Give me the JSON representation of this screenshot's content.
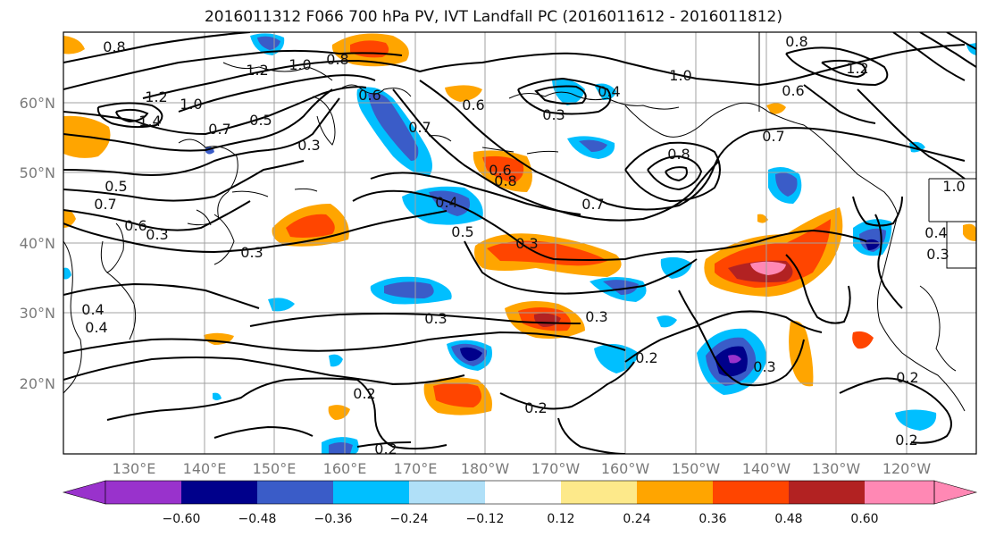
{
  "title": "2016011312 F066 700 hPa PV, IVT Landfall PC (2016011612 - 2016011812)",
  "latitude_labels": [
    "60°N",
    "50°N",
    "40°N",
    "30°N",
    "20°N"
  ],
  "longitude_labels": [
    "130°E",
    "140°E",
    "150°E",
    "160°E",
    "170°E",
    "180°W",
    "170°W",
    "160°W",
    "150°W",
    "140°W",
    "130°W",
    "120°W"
  ],
  "colorbar": {
    "tick_labels": [
      "−0.60",
      "−0.48",
      "−0.36",
      "−0.24",
      "−0.12",
      "0.12",
      "0.24",
      "0.36",
      "0.48",
      "0.60"
    ],
    "colors": [
      "#9932cc",
      "#00008b",
      "#3a5cc8",
      "#00bfff",
      "#b0e0f8",
      "#ffffff",
      "#fde98a",
      "#ffa500",
      "#ff4500",
      "#b22222",
      "#ff88b4"
    ]
  },
  "contour_labels": [
    "0.8",
    "1.2",
    "1.0",
    "0.8",
    "1.2",
    "1.4",
    "1.0",
    "0.7",
    "0.5",
    "0.3",
    "0.5",
    "0.7",
    "0.6",
    "0.3",
    "0.6",
    "0.3",
    "0.7",
    "0.6",
    "0.4",
    "0.5",
    "0.4",
    "0.3",
    "0.3",
    "0.7",
    "0.6",
    "0.8",
    "0.7",
    "1.0",
    "0.8",
    "1.2",
    "0.6",
    "0.8",
    "1.0",
    "0.4",
    "0.3",
    "0.3",
    "0.2",
    "0.2",
    "0.2",
    "0.2",
    "0.3",
    "0.2",
    "0.2",
    "0.4",
    "0.3",
    "0.4"
  ],
  "colors": {
    "contour": "#000000",
    "grid": "#a0a0a0",
    "coast": "#000000"
  }
}
